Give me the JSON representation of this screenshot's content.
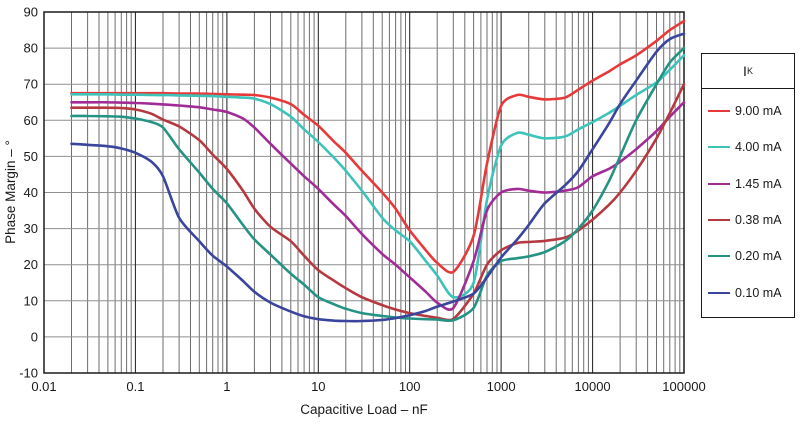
{
  "chart_data": {
    "type": "line",
    "x_scale": "log",
    "grid": true,
    "title": "",
    "xlabel": "Capacitive Load – nF",
    "ylabel": "Phase Margin – °",
    "xlim": [
      0.01,
      100000
    ],
    "ylim": [
      -10,
      90
    ],
    "x_tick_labels": [
      "0.01",
      "0.1",
      "1",
      "10",
      "100",
      "1000",
      "10000",
      "100000"
    ],
    "x_tick_values": [
      0.01,
      0.1,
      1,
      10,
      100,
      1000,
      10000,
      100000
    ],
    "y_tick_labels": [
      "90",
      "80",
      "70",
      "60",
      "50",
      "40",
      "30",
      "20",
      "10",
      "0",
      "-10"
    ],
    "y_tick_values": [
      90,
      80,
      70,
      60,
      50,
      40,
      30,
      20,
      10,
      0,
      -10
    ],
    "legend_position": "right",
    "legend_title_main": "I",
    "legend_title_sub": "K",
    "colors": {
      "grid_horizontal": "#8f8f8f",
      "grid_major_vertical": "#1c1c1c",
      "grid_minor_vertical": "#6e6e6e",
      "plot_border": "#1c1c1c",
      "text": "#1a1a1a"
    },
    "x": [
      0.02,
      0.03,
      0.05,
      0.07,
      0.1,
      0.15,
      0.2,
      0.3,
      0.5,
      0.7,
      1,
      1.5,
      2,
      3,
      5,
      7,
      10,
      15,
      20,
      30,
      50,
      70,
      100,
      150,
      200,
      300,
      500,
      700,
      1000,
      1500,
      2000,
      3000,
      5000,
      7000,
      10000,
      15000,
      20000,
      30000,
      50000,
      70000,
      100000
    ],
    "series": [
      {
        "name": "9.00 mA",
        "color": "#e8393a",
        "values": [
          67.5,
          67.5,
          67.5,
          67.5,
          67.5,
          67.5,
          67.5,
          67.4,
          67.4,
          67.3,
          67.2,
          67.1,
          67.0,
          66.3,
          64.5,
          61.5,
          58.5,
          54.0,
          51.0,
          46.0,
          40.0,
          35.5,
          29.5,
          24.0,
          20.5,
          18.0,
          28.0,
          48.0,
          64.0,
          67.0,
          66.5,
          65.8,
          66.3,
          68.5,
          71.0,
          73.5,
          75.5,
          78.0,
          82.0,
          85.0,
          87.5
        ]
      },
      {
        "name": "4.00 mA",
        "color": "#3ec3ba",
        "values": [
          67.2,
          67.2,
          67.2,
          67.1,
          67.1,
          67.0,
          67.0,
          66.9,
          66.8,
          66.7,
          66.5,
          66.3,
          66.0,
          64.5,
          61.0,
          57.5,
          54.0,
          49.5,
          46.0,
          40.5,
          33.0,
          29.5,
          26.5,
          21.0,
          17.0,
          11.0,
          15.0,
          38.0,
          53.0,
          56.5,
          56.0,
          55.0,
          55.5,
          57.5,
          59.5,
          62.0,
          64.0,
          67.0,
          70.5,
          74.0,
          78.0
        ]
      },
      {
        "name": "1.45 mA",
        "color": "#a12c96",
        "values": [
          65.0,
          65.0,
          65.0,
          64.9,
          64.8,
          64.6,
          64.4,
          64.1,
          63.6,
          63.0,
          62.3,
          60.5,
          58.0,
          53.5,
          48.0,
          44.5,
          41.0,
          36.5,
          33.5,
          28.5,
          23.0,
          20.0,
          16.5,
          12.5,
          9.5,
          8.0,
          21.0,
          35.0,
          40.0,
          41.0,
          40.5,
          40.0,
          40.5,
          41.5,
          44.5,
          46.5,
          48.5,
          52.0,
          57.0,
          61.0,
          65.0
        ]
      },
      {
        "name": "0.38 mA",
        "color": "#b53941",
        "values": [
          63.5,
          63.5,
          63.5,
          63.4,
          63.0,
          61.8,
          60.2,
          58.3,
          54.5,
          50.5,
          46.5,
          40.5,
          35.5,
          30.5,
          26.5,
          22.5,
          18.5,
          15.5,
          13.5,
          11.0,
          8.8,
          7.6,
          6.6,
          5.8,
          5.3,
          5.0,
          12.0,
          20.0,
          24.0,
          26.0,
          26.3,
          26.6,
          27.5,
          29.5,
          32.5,
          36.5,
          40.0,
          46.0,
          55.0,
          62.0,
          70.0
        ]
      },
      {
        "name": "0.20 mA",
        "color": "#259384",
        "values": [
          61.2,
          61.2,
          61.1,
          61.0,
          60.5,
          59.5,
          58.0,
          52.0,
          45.5,
          41.0,
          37.0,
          31.0,
          27.0,
          22.8,
          17.5,
          14.5,
          11.0,
          9.0,
          7.8,
          6.6,
          5.8,
          5.4,
          5.1,
          4.9,
          4.8,
          4.6,
          8.0,
          17.0,
          21.0,
          21.8,
          22.3,
          23.5,
          26.5,
          30.0,
          35.0,
          43.0,
          50.0,
          60.0,
          70.0,
          76.0,
          80.0
        ]
      },
      {
        "name": "0.10 mA",
        "color": "#3a459b",
        "values": [
          53.5,
          53.2,
          52.8,
          52.2,
          51.0,
          48.5,
          44.5,
          33.0,
          26.5,
          22.5,
          19.5,
          15.5,
          12.5,
          9.5,
          7.0,
          5.7,
          4.9,
          4.5,
          4.4,
          4.4,
          4.7,
          5.2,
          6.0,
          7.2,
          8.4,
          9.8,
          12.0,
          16.5,
          22.0,
          27.0,
          31.0,
          37.0,
          42.0,
          46.0,
          52.0,
          59.0,
          64.5,
          71.0,
          79.0,
          82.5,
          84.0
        ]
      }
    ]
  }
}
